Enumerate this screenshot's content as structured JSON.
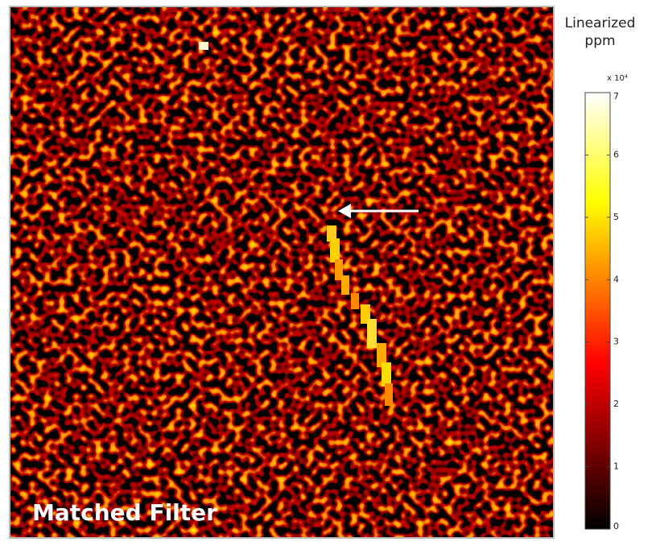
{
  "chart_data": {
    "type": "heatmap",
    "annotation": "Matched Filter",
    "colorbar_label": "Linearized ppm",
    "colorbar_scale": "x 10⁴",
    "zlim": [
      0,
      7
    ],
    "zticks": [
      0,
      1,
      2,
      3,
      4,
      5,
      6,
      7
    ],
    "colormap": "hot"
  }
}
